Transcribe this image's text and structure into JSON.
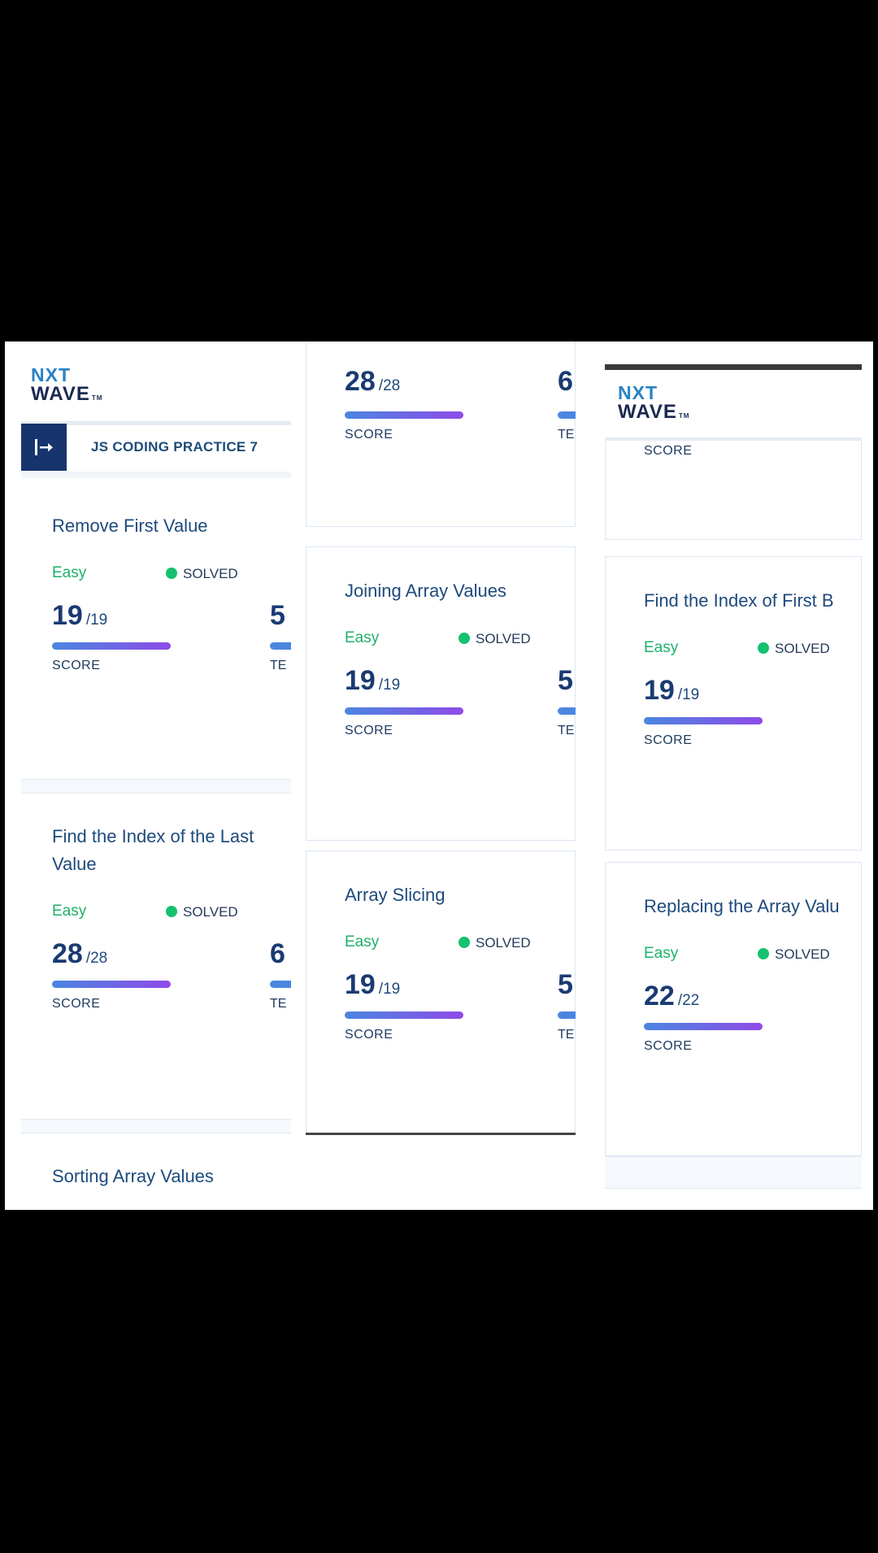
{
  "logo": {
    "line1": "NXT",
    "line2": "WAVE",
    "tm": "TM"
  },
  "practice_title": "JS CODING PRACTICE 7",
  "panel1": {
    "cards": [
      {
        "title": "Remove First Value",
        "difficulty": "Easy",
        "status": "SOLVED",
        "score": "19",
        "score_max": "/19",
        "score_label": "SCORE",
        "test_value": "5",
        "test_label": "TE"
      },
      {
        "title": "Find the Index of the Last Value",
        "difficulty": "Easy",
        "status": "SOLVED",
        "score": "28",
        "score_max": "/28",
        "score_label": "SCORE",
        "test_value": "6",
        "test_label": "TE"
      },
      {
        "title": "Sorting Array Values"
      }
    ]
  },
  "panel2": {
    "cards": [
      {
        "score": "28",
        "score_max": "/28",
        "score_label": "SCORE",
        "test_value": "6",
        "test_label": "TE:"
      },
      {
        "title": "Joining Array Values",
        "difficulty": "Easy",
        "status": "SOLVED",
        "score": "19",
        "score_max": "/19",
        "score_label": "SCORE",
        "test_value": "5",
        "test_label": "TE:"
      },
      {
        "title": "Array Slicing",
        "difficulty": "Easy",
        "status": "SOLVED",
        "score": "19",
        "score_max": "/19",
        "score_label": "SCORE",
        "test_value": "5",
        "test_label": "TE:"
      }
    ]
  },
  "panel3": {
    "cards": [
      {
        "score_label": "SCORE"
      },
      {
        "title": "Find the Index of First B",
        "difficulty": "Easy",
        "status": "SOLVED",
        "score": "19",
        "score_max": "/19",
        "score_label": "SCORE"
      },
      {
        "title": "Replacing the Array Valu",
        "difficulty": "Easy",
        "status": "SOLVED",
        "score": "22",
        "score_max": "/22",
        "score_label": "SCORE"
      }
    ]
  },
  "colors": {
    "brand_navy": "#17346e",
    "easy_green": "#1db16a",
    "solved_dot": "#13c16f",
    "bar_start": "#4a86e0",
    "bar_end": "#8e4be8"
  }
}
